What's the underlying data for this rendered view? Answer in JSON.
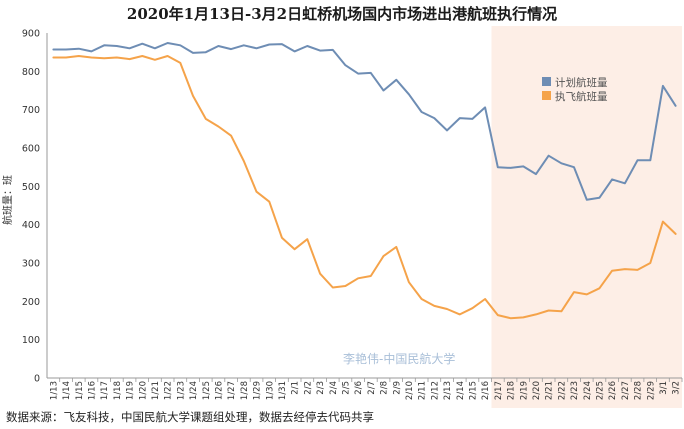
{
  "chart_data": {
    "type": "line",
    "title": "2020年1月13日-3月2日虹桥机场国内市场进出港航班执行情况",
    "ylabel": "航班量：班",
    "xlabel": "",
    "ylim": [
      0,
      900
    ],
    "yticks": [
      0,
      100,
      200,
      300,
      400,
      500,
      600,
      700,
      800,
      900
    ],
    "x": [
      "1/13",
      "1/14",
      "1/15",
      "1/16",
      "1/17",
      "1/18",
      "1/19",
      "1/20",
      "1/21",
      "1/22",
      "1/23",
      "1/24",
      "1/25",
      "1/26",
      "1/27",
      "1/28",
      "1/29",
      "1/30",
      "1/31",
      "2/1",
      "2/2",
      "2/3",
      "2/4",
      "2/5",
      "2/6",
      "2/7",
      "2/8",
      "2/9",
      "2/10",
      "2/11",
      "2/12",
      "2/13",
      "2/14",
      "2/15",
      "2/16",
      "2/17",
      "2/18",
      "2/19",
      "2/20",
      "2/21",
      "2/22",
      "2/23",
      "2/24",
      "2/25",
      "2/26",
      "2/27",
      "2/28",
      "2/29",
      "3/1",
      "3/2"
    ],
    "series": [
      {
        "name": "计划航班量",
        "color": "#6e8db4",
        "values": [
          857,
          857,
          859,
          852,
          868,
          866,
          860,
          872,
          860,
          874,
          868,
          848,
          850,
          866,
          858,
          868,
          860,
          870,
          871,
          852,
          866,
          854,
          856,
          816,
          794,
          796,
          750,
          778,
          740,
          694,
          678,
          646,
          678,
          676,
          706,
          550,
          548,
          552,
          532,
          580,
          560,
          550,
          465,
          470,
          518,
          508,
          568,
          568,
          762,
          710
        ]
      },
      {
        "name": "执飞航班量",
        "color": "#f5a34a",
        "values": [
          836,
          836,
          840,
          836,
          834,
          836,
          832,
          840,
          830,
          840,
          822,
          736,
          676,
          656,
          632,
          566,
          486,
          460,
          366,
          336,
          362,
          272,
          236,
          240,
          260,
          266,
          318,
          342,
          250,
          206,
          188,
          180,
          166,
          182,
          206,
          164,
          156,
          158,
          166,
          176,
          174,
          224,
          218,
          234,
          280,
          284,
          282,
          300,
          408,
          376
        ]
      }
    ],
    "highlight_from": "2/17",
    "legend": "right",
    "grid": false
  },
  "watermark": "李艳伟-中国民航大学",
  "source": "数据来源：飞友科技，中国民航大学课题组处理，数据去经停去代码共享",
  "colors": {
    "highlight_bg": "#fdeee6"
  }
}
